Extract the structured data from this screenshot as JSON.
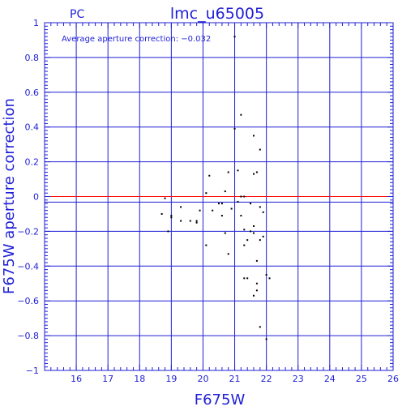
{
  "chart_data": {
    "type": "scatter",
    "title": "lmc_u65005",
    "corner_label": "PC",
    "xlabel": "F675W",
    "ylabel": "F675W aperture correction",
    "annotation": "Average aperture correction: −0.032",
    "xlim": [
      15,
      26
    ],
    "ylim": [
      -1,
      1
    ],
    "x_ticks": [
      16,
      17,
      18,
      19,
      20,
      21,
      22,
      23,
      24,
      25,
      26
    ],
    "x_tick_labels": [
      "16",
      "17",
      "18",
      "19",
      "20",
      "21",
      "22",
      "23",
      "24",
      "25",
      "26"
    ],
    "y_ticks": [
      -1,
      -0.8,
      -0.6,
      -0.4,
      -0.2,
      0,
      0.2,
      0.4,
      0.6,
      0.8,
      1
    ],
    "y_tick_labels": [
      "−1",
      "−0.8",
      "−0.6",
      "−0.4",
      "−0.2",
      "0",
      "0.2",
      "0.4",
      "0.6",
      "0.8",
      "1"
    ],
    "grid": true,
    "reference_lines": [
      {
        "name": "zero",
        "y": 0,
        "color": "#ff0000"
      },
      {
        "name": "average",
        "y": -0.032,
        "color": "#1f1fd6"
      }
    ],
    "colors": {
      "axis": "#1f1fd6",
      "points": "#000000"
    },
    "points": [
      {
        "x": 18.7,
        "y": -0.1
      },
      {
        "x": 18.8,
        "y": -0.01
      },
      {
        "x": 18.9,
        "y": -0.2
      },
      {
        "x": 19.0,
        "y": -0.12
      },
      {
        "x": 19.0,
        "y": -0.11
      },
      {
        "x": 19.3,
        "y": -0.06
      },
      {
        "x": 19.3,
        "y": -0.14
      },
      {
        "x": 19.6,
        "y": -0.14
      },
      {
        "x": 19.8,
        "y": -0.15
      },
      {
        "x": 19.8,
        "y": -0.14
      },
      {
        "x": 19.9,
        "y": -0.08
      },
      {
        "x": 20.1,
        "y": 0.02
      },
      {
        "x": 20.1,
        "y": -0.28
      },
      {
        "x": 20.2,
        "y": 0.12
      },
      {
        "x": 20.3,
        "y": -0.08
      },
      {
        "x": 20.5,
        "y": -0.04
      },
      {
        "x": 20.6,
        "y": -0.04
      },
      {
        "x": 20.6,
        "y": -0.11
      },
      {
        "x": 20.7,
        "y": -0.21
      },
      {
        "x": 20.7,
        "y": 0.03
      },
      {
        "x": 20.8,
        "y": -0.33
      },
      {
        "x": 20.8,
        "y": 0.14
      },
      {
        "x": 20.9,
        "y": -0.07
      },
      {
        "x": 21.0,
        "y": 0.92
      },
      {
        "x": 21.0,
        "y": 0.39
      },
      {
        "x": 21.1,
        "y": 0.15
      },
      {
        "x": 21.1,
        "y": -0.03
      },
      {
        "x": 21.2,
        "y": 0.47
      },
      {
        "x": 21.2,
        "y": 0.0
      },
      {
        "x": 21.2,
        "y": -0.11
      },
      {
        "x": 21.3,
        "y": 0.0
      },
      {
        "x": 21.3,
        "y": -0.19
      },
      {
        "x": 21.3,
        "y": -0.28
      },
      {
        "x": 21.3,
        "y": -0.47
      },
      {
        "x": 21.4,
        "y": -0.47
      },
      {
        "x": 21.4,
        "y": -0.25
      },
      {
        "x": 21.5,
        "y": -0.2
      },
      {
        "x": 21.5,
        "y": -0.04
      },
      {
        "x": 21.6,
        "y": 0.35
      },
      {
        "x": 21.6,
        "y": 0.13
      },
      {
        "x": 21.6,
        "y": -0.17
      },
      {
        "x": 21.6,
        "y": -0.57
      },
      {
        "x": 21.6,
        "y": -0.21
      },
      {
        "x": 21.7,
        "y": 0.14
      },
      {
        "x": 21.7,
        "y": -0.5
      },
      {
        "x": 21.7,
        "y": -0.54
      },
      {
        "x": 21.7,
        "y": -0.37
      },
      {
        "x": 21.8,
        "y": 0.27
      },
      {
        "x": 21.8,
        "y": -0.06
      },
      {
        "x": 21.8,
        "y": -0.25
      },
      {
        "x": 21.8,
        "y": -0.75
      },
      {
        "x": 21.9,
        "y": -0.09
      },
      {
        "x": 21.9,
        "y": -0.23
      },
      {
        "x": 22.0,
        "y": -0.45
      },
      {
        "x": 22.0,
        "y": -0.82
      },
      {
        "x": 22.1,
        "y": -0.47
      }
    ]
  }
}
